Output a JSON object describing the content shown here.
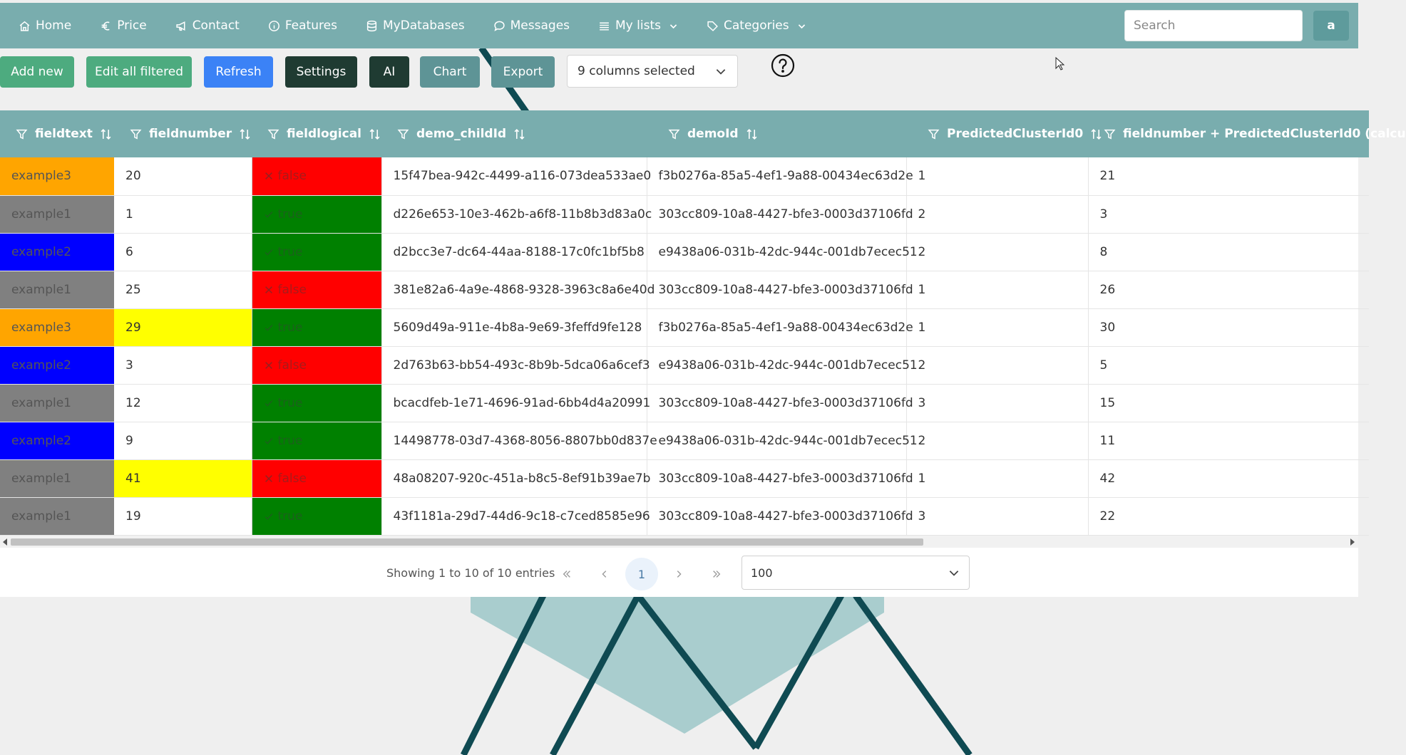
{
  "nav": {
    "items": [
      {
        "label": "Home",
        "icon": "home-icon"
      },
      {
        "label": "Price",
        "icon": "euro-icon"
      },
      {
        "label": "Contact",
        "icon": "megaphone-icon"
      },
      {
        "label": "Features",
        "icon": "info-icon"
      },
      {
        "label": "MyDatabases",
        "icon": "database-icon"
      },
      {
        "label": "Messages",
        "icon": "chat-icon"
      },
      {
        "label": "My lists",
        "icon": "list-icon"
      },
      {
        "label": "Categories",
        "icon": "tag-icon"
      }
    ],
    "search_placeholder": "Search",
    "user_initial": "a"
  },
  "toolbar": {
    "add_label": "Add new",
    "edit_label": "Edit all filtered",
    "refresh_label": "Refresh",
    "settings_label": "Settings",
    "ai_label": "AI",
    "chart_label": "Chart",
    "export_label": "Export",
    "columns_selected": "9 columns selected"
  },
  "table": {
    "columns": [
      "fieldtext",
      "fieldnumber",
      "fieldlogical",
      "demo_childId",
      "demoId",
      "PredictedClusterId0",
      "fieldnumber + PredictedClusterId0 (calcu"
    ],
    "rows": [
      {
        "fieldtext": "example3",
        "fieldtext_color": "#ffa500",
        "fieldnumber": "20",
        "fieldnumber_color": "#ffffff",
        "fieldlogical": "false",
        "logical_color": "#ff0000",
        "demo_childId": "15f47bea-942c-4499-a116-073dea533ae0",
        "demoId": "f3b0276a-85a5-4ef1-9a88-00434ec63d2e",
        "cluster": "1",
        "sum": "21"
      },
      {
        "fieldtext": "example1",
        "fieldtext_color": "#808080",
        "fieldnumber": "1",
        "fieldnumber_color": "#ffffff",
        "fieldlogical": "true",
        "logical_color": "#008000",
        "demo_childId": "d226e653-10e3-462b-a6f8-11b8b3d83a0c",
        "demoId": "303cc809-10a8-4427-bfe3-0003d37106fd",
        "cluster": "2",
        "sum": "3"
      },
      {
        "fieldtext": "example2",
        "fieldtext_color": "#0000ff",
        "fieldnumber": "6",
        "fieldnumber_color": "#ffffff",
        "fieldlogical": "true",
        "logical_color": "#008000",
        "demo_childId": "d2bcc3e7-dc64-44aa-8188-17c0fc1bf5b8",
        "demoId": "e9438a06-031b-42dc-944c-001db7ecec51",
        "cluster": "2",
        "sum": "8"
      },
      {
        "fieldtext": "example1",
        "fieldtext_color": "#808080",
        "fieldnumber": "25",
        "fieldnumber_color": "#ffffff",
        "fieldlogical": "false",
        "logical_color": "#ff0000",
        "demo_childId": "381e82a6-4a9e-4868-9328-3963c8a6e40d",
        "demoId": "303cc809-10a8-4427-bfe3-0003d37106fd",
        "cluster": "1",
        "sum": "26"
      },
      {
        "fieldtext": "example3",
        "fieldtext_color": "#ffa500",
        "fieldnumber": "29",
        "fieldnumber_color": "#ffff00",
        "fieldlogical": "true",
        "logical_color": "#008000",
        "demo_childId": "5609d49a-911e-4b8a-9e69-3feffd9fe128",
        "demoId": "f3b0276a-85a5-4ef1-9a88-00434ec63d2e",
        "cluster": "1",
        "sum": "30"
      },
      {
        "fieldtext": "example2",
        "fieldtext_color": "#0000ff",
        "fieldnumber": "3",
        "fieldnumber_color": "#ffffff",
        "fieldlogical": "false",
        "logical_color": "#ff0000",
        "demo_childId": "2d763b63-bb54-493c-8b9b-5dca06a6cef3",
        "demoId": "e9438a06-031b-42dc-944c-001db7ecec51",
        "cluster": "2",
        "sum": "5"
      },
      {
        "fieldtext": "example1",
        "fieldtext_color": "#808080",
        "fieldnumber": "12",
        "fieldnumber_color": "#ffffff",
        "fieldlogical": "true",
        "logical_color": "#008000",
        "demo_childId": "bcacdfeb-1e71-4696-91ad-6bb4d4a20991",
        "demoId": "303cc809-10a8-4427-bfe3-0003d37106fd",
        "cluster": "3",
        "sum": "15"
      },
      {
        "fieldtext": "example2",
        "fieldtext_color": "#0000ff",
        "fieldnumber": "9",
        "fieldnumber_color": "#ffffff",
        "fieldlogical": "true",
        "logical_color": "#008000",
        "demo_childId": "14498778-03d7-4368-8056-8807bb0d837e",
        "demoId": "e9438a06-031b-42dc-944c-001db7ecec51",
        "cluster": "2",
        "sum": "11"
      },
      {
        "fieldtext": "example1",
        "fieldtext_color": "#808080",
        "fieldnumber": "41",
        "fieldnumber_color": "#ffff00",
        "fieldlogical": "false",
        "logical_color": "#ff0000",
        "demo_childId": "48a08207-920c-451a-b8c5-8ef91b39ae7b",
        "demoId": "303cc809-10a8-4427-bfe3-0003d37106fd",
        "cluster": "1",
        "sum": "42"
      },
      {
        "fieldtext": "example1",
        "fieldtext_color": "#808080",
        "fieldnumber": "19",
        "fieldnumber_color": "#ffffff",
        "fieldlogical": "true",
        "logical_color": "#008000",
        "demo_childId": "43f1181a-29d7-44d6-9c18-c7ced8585e96",
        "demoId": "303cc809-10a8-4427-bfe3-0003d37106fd",
        "cluster": "3",
        "sum": "22"
      }
    ]
  },
  "pagination": {
    "info": "Showing 1 to 10 of 10 entries",
    "current_page": "1",
    "page_size": "100"
  },
  "colors": {
    "accent": "#79adae",
    "add": "#4dab7f",
    "refresh": "#3b82f6",
    "dark": "#1f3b32",
    "chart": "#5e9496"
  }
}
